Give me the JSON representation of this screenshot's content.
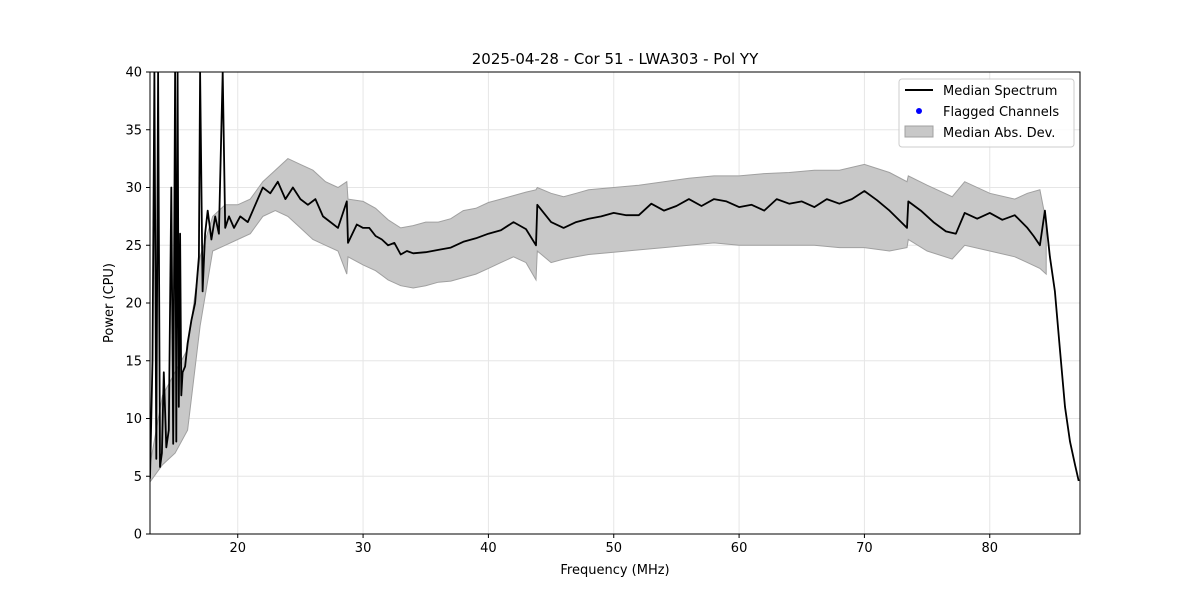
{
  "chart_data": {
    "type": "line",
    "title": "2025-04-28 - Cor 51 - LWA303 - Pol YY",
    "xlabel": "Frequency (MHz)",
    "ylabel": "Power (CPU)",
    "xlim": [
      13.0,
      87.2
    ],
    "ylim": [
      0,
      40
    ],
    "xticks": [
      20,
      30,
      40,
      50,
      60,
      70,
      80
    ],
    "yticks": [
      0,
      5,
      10,
      15,
      20,
      25,
      30,
      35,
      40
    ],
    "grid": true,
    "legend_position": "top-right",
    "legend": [
      {
        "label": "Median Spectrum",
        "kind": "line"
      },
      {
        "label": "Flagged Channels",
        "kind": "marker"
      },
      {
        "label": "Median Abs. Dev.",
        "kind": "band"
      }
    ],
    "colors": {
      "line": "#000000",
      "flagged": "#0000ff",
      "band_fill": "#c8c8c8",
      "band_edge": "#a0a0a0",
      "grid": "#e6e6e6"
    },
    "series": [
      {
        "name": "Median Spectrum",
        "x": [
          13.0,
          13.2,
          13.35,
          13.5,
          13.65,
          13.8,
          13.95,
          14.1,
          14.3,
          14.5,
          14.7,
          14.85,
          15.0,
          15.1,
          15.2,
          15.3,
          15.4,
          15.5,
          15.6,
          15.8,
          16.0,
          16.3,
          16.6,
          16.9,
          17.0,
          17.2,
          17.4,
          17.6,
          17.9,
          18.2,
          18.5,
          18.8,
          19.0,
          19.3,
          19.7,
          20.2,
          20.8,
          21.4,
          22.0,
          22.6,
          23.2,
          23.8,
          24.4,
          25.0,
          25.6,
          26.2,
          26.8,
          27.4,
          28.0,
          28.7,
          28.8,
          29.5,
          30.0,
          30.5,
          31.0,
          31.5,
          32.0,
          32.5,
          33.0,
          33.5,
          34.0,
          35.0,
          36.0,
          37.0,
          38.0,
          39.0,
          40.0,
          41.0,
          42.0,
          43.0,
          43.8,
          43.9,
          45.0,
          46.0,
          47.0,
          48.0,
          49.0,
          50.0,
          51.0,
          52.0,
          53.0,
          54.0,
          55.0,
          56.0,
          57.0,
          58.0,
          59.0,
          60.0,
          61.0,
          62.0,
          63.0,
          64.0,
          65.0,
          66.0,
          67.0,
          68.0,
          69.0,
          70.0,
          71.0,
          72.0,
          73.4,
          73.5,
          74.5,
          75.5,
          76.5,
          77.3,
          78.0,
          79.0,
          80.0,
          81.0,
          82.0,
          83.0,
          83.5,
          84.0,
          84.4,
          84.8,
          85.2,
          85.6,
          86.0,
          86.4,
          86.8,
          87.1
        ],
        "y": [
          4.8,
          15.0,
          40.0,
          6.5,
          40.0,
          5.8,
          7.0,
          14.0,
          7.5,
          9.0,
          30.0,
          7.8,
          40.0,
          8.0,
          40.0,
          11.0,
          26.0,
          12.0,
          14.0,
          14.5,
          16.5,
          18.5,
          20.0,
          24.0,
          40.0,
          21.0,
          26.0,
          28.0,
          25.5,
          27.5,
          26.0,
          40.0,
          26.5,
          27.5,
          26.5,
          27.5,
          27.0,
          28.5,
          30.0,
          29.5,
          30.5,
          29.0,
          30.0,
          29.0,
          28.5,
          29.0,
          27.5,
          27.0,
          26.5,
          28.8,
          25.2,
          26.8,
          26.5,
          26.5,
          25.8,
          25.5,
          25.0,
          25.2,
          24.2,
          24.5,
          24.3,
          24.4,
          24.6,
          24.8,
          25.3,
          25.6,
          26.0,
          26.3,
          27.0,
          26.4,
          25.0,
          28.5,
          27.0,
          26.5,
          27.0,
          27.3,
          27.5,
          27.8,
          27.6,
          27.6,
          28.6,
          28.0,
          28.4,
          29.0,
          28.4,
          29.0,
          28.8,
          28.3,
          28.5,
          28.0,
          29.0,
          28.6,
          28.8,
          28.3,
          29.0,
          28.6,
          29.0,
          29.7,
          28.9,
          28.0,
          26.5,
          28.8,
          28.0,
          27.0,
          26.2,
          26.0,
          27.8,
          27.3,
          27.8,
          27.2,
          27.6,
          26.5,
          25.8,
          25.0,
          28.0,
          24.0,
          21.0,
          16.0,
          11.0,
          8.0,
          6.0,
          4.6
        ]
      },
      {
        "name": "Median Abs. Dev.",
        "kind": "band",
        "x": [
          13.0,
          14.0,
          15.0,
          16.0,
          17.0,
          18.0,
          19.0,
          20.0,
          21.0,
          22.0,
          23.0,
          24.0,
          25.0,
          26.0,
          27.0,
          28.0,
          28.7,
          28.8,
          30.0,
          31.0,
          32.0,
          33.0,
          34.0,
          35.0,
          36.0,
          37.0,
          38.0,
          39.0,
          40.0,
          41.0,
          42.0,
          43.0,
          43.8,
          43.9,
          45.0,
          46.0,
          47.0,
          48.0,
          50.0,
          52.0,
          54.0,
          56.0,
          58.0,
          60.0,
          62.0,
          64.0,
          66.0,
          68.0,
          70.0,
          72.0,
          73.4,
          73.5,
          75.0,
          77.0,
          78.0,
          80.0,
          82.0,
          83.0,
          84.0,
          84.5
        ],
        "upper": [
          6.0,
          12.0,
          14.0,
          16.0,
          24.0,
          27.5,
          28.5,
          28.5,
          29.0,
          30.5,
          31.5,
          32.5,
          32.0,
          31.5,
          30.5,
          30.0,
          30.5,
          29.0,
          28.8,
          28.2,
          27.2,
          26.5,
          26.7,
          27.0,
          27.0,
          27.3,
          28.0,
          28.2,
          28.7,
          29.0,
          29.3,
          29.6,
          29.8,
          30.0,
          29.5,
          29.2,
          29.5,
          29.8,
          30.0,
          30.2,
          30.5,
          30.8,
          31.0,
          31.0,
          31.2,
          31.3,
          31.5,
          31.5,
          32.0,
          31.3,
          30.5,
          31.0,
          30.2,
          29.2,
          30.5,
          29.5,
          29.0,
          29.5,
          29.8,
          27.0
        ],
        "lower": [
          4.5,
          6.0,
          7.0,
          9.0,
          18.0,
          24.5,
          25.0,
          25.5,
          26.0,
          27.5,
          28.0,
          27.5,
          26.5,
          25.5,
          25.0,
          24.5,
          22.5,
          24.0,
          23.3,
          22.8,
          22.0,
          21.5,
          21.3,
          21.5,
          21.8,
          21.9,
          22.2,
          22.5,
          23.0,
          23.5,
          24.0,
          23.5,
          22.0,
          24.5,
          23.5,
          23.8,
          24.0,
          24.2,
          24.4,
          24.6,
          24.8,
          25.0,
          25.2,
          25.0,
          25.0,
          25.0,
          25.0,
          24.8,
          24.8,
          24.5,
          24.8,
          25.5,
          24.5,
          23.8,
          25.0,
          24.5,
          24.0,
          23.5,
          23.0,
          22.5
        ]
      }
    ]
  }
}
